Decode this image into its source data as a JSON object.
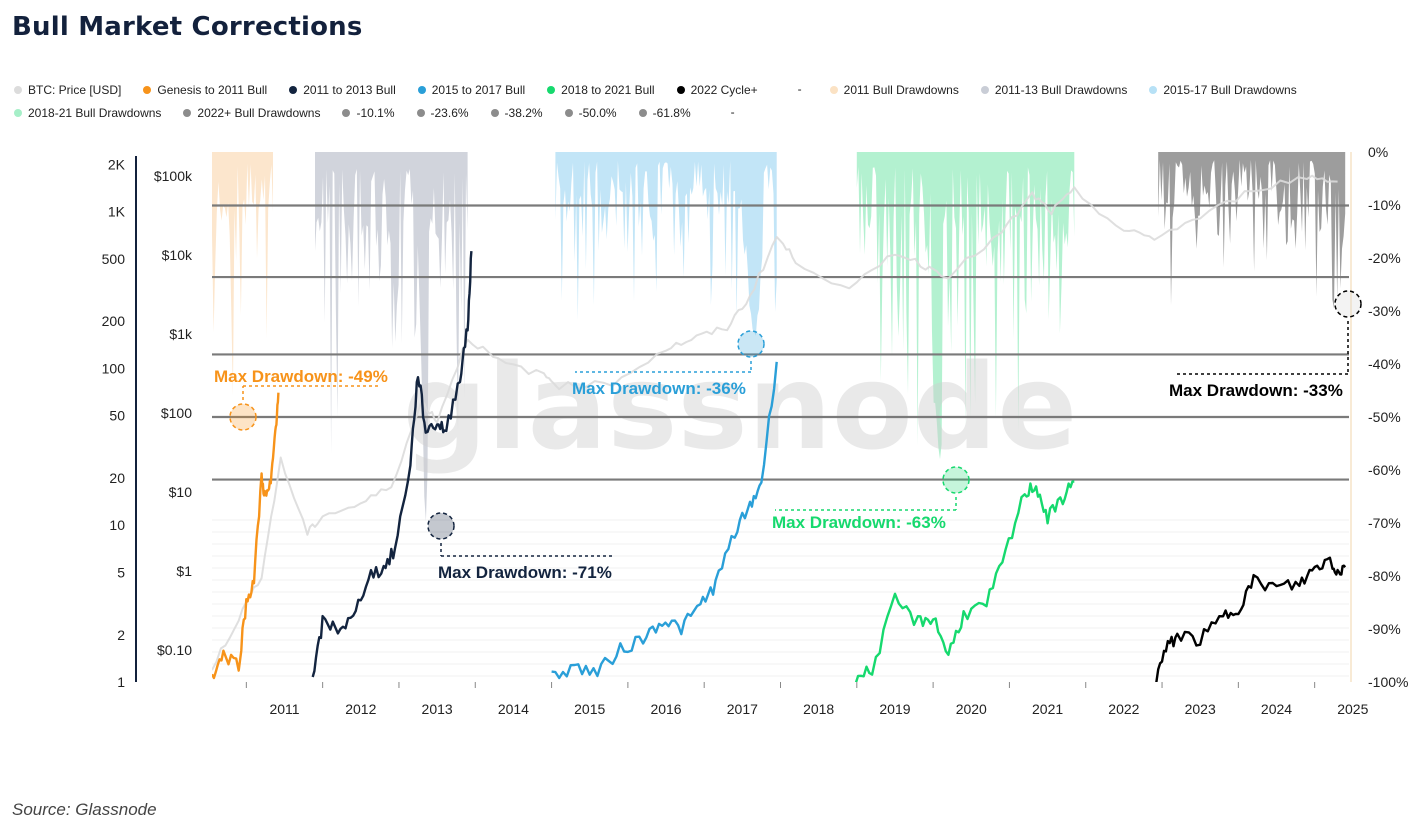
{
  "title": "Bull Market Corrections",
  "source": "Source: Glassnode",
  "watermark": "glassnode",
  "legend": [
    {
      "label": "BTC: Price [USD]",
      "color": "#dcdcdc"
    },
    {
      "label": "Genesis to 2011 Bull",
      "color": "#f7931a"
    },
    {
      "label": "2011 to 2013 Bull",
      "color": "#13243f"
    },
    {
      "label": "2015 to 2017 Bull",
      "color": "#2a9fd8"
    },
    {
      "label": "2018 to 2021 Bull",
      "color": "#16d96e"
    },
    {
      "label": "2022 Cycle+",
      "color": "#000000"
    },
    {
      "label": "-",
      "color": "",
      "dash": true
    },
    {
      "label": "2011 Bull Drawdowns",
      "color": "#fbe2c4"
    },
    {
      "label": "2011-13 Bull Drawdowns",
      "color": "#c9cdd6"
    },
    {
      "label": "2015-17 Bull Drawdowns",
      "color": "#b7e1f6"
    },
    {
      "label": "2018-21 Bull Drawdowns",
      "color": "#a6efc8"
    },
    {
      "label": "2022+ Bull Drawdowns",
      "color": "#8c8c8c"
    },
    {
      "label": "-10.1%",
      "color": "#8c8c8c"
    },
    {
      "label": "-23.6%",
      "color": "#8c8c8c"
    },
    {
      "label": "-38.2%",
      "color": "#8c8c8c"
    },
    {
      "label": "-50.0%",
      "color": "#8c8c8c"
    },
    {
      "label": "-61.8%",
      "color": "#8c8c8c"
    },
    {
      "label": "-",
      "color": "",
      "dash": true
    }
  ],
  "chart_data": {
    "type": "line",
    "x_ticks": [
      "2011",
      "2012",
      "2013",
      "2014",
      "2015",
      "2016",
      "2017",
      "2018",
      "2019",
      "2020",
      "2021",
      "2022",
      "2023",
      "2024",
      "2025"
    ],
    "y_left_outer": {
      "scale": "log",
      "ticks": [
        "2K",
        "1K",
        "500",
        "200",
        "100",
        "50",
        "20",
        "10",
        "5",
        "2",
        "1"
      ]
    },
    "y_left_inner": {
      "scale": "log",
      "ticks": [
        "$100k",
        "$10k",
        "$1k",
        "$100",
        "$10",
        "$1",
        "$0.10"
      ]
    },
    "y_right": {
      "scale": "linear",
      "ticks": [
        "0%",
        "-10%",
        "-20%",
        "-30%",
        "-40%",
        "-50%",
        "-60%",
        "-70%",
        "-80%",
        "-90%",
        "-100%"
      ],
      "ylim": [
        -100,
        0
      ]
    },
    "fib_levels": [
      -10.1,
      -23.6,
      -38.2,
      -50.0,
      -61.8
    ],
    "series": [
      {
        "name": "BTC: Price [USD]",
        "color": "#dcdcdc",
        "points": [
          [
            2010.55,
            0.06
          ],
          [
            2010.9,
            0.25
          ],
          [
            2011.2,
            0.9
          ],
          [
            2011.45,
            25
          ],
          [
            2011.8,
            3
          ],
          [
            2012.0,
            5
          ],
          [
            2012.5,
            7
          ],
          [
            2012.9,
            12
          ],
          [
            2013.3,
            140
          ],
          [
            2013.5,
            80
          ],
          [
            2013.9,
            900
          ],
          [
            2014.3,
            450
          ],
          [
            2014.9,
            300
          ],
          [
            2015.1,
            220
          ],
          [
            2015.8,
            240
          ],
          [
            2016.5,
            650
          ],
          [
            2016.9,
            900
          ],
          [
            2017.3,
            1200
          ],
          [
            2017.6,
            3000
          ],
          [
            2017.95,
            17000
          ],
          [
            2018.2,
            8500
          ],
          [
            2018.9,
            3500
          ],
          [
            2019.5,
            11000
          ],
          [
            2019.9,
            7200
          ],
          [
            2020.2,
            5500
          ],
          [
            2020.9,
            19000
          ],
          [
            2021.3,
            58000
          ],
          [
            2021.55,
            35000
          ],
          [
            2021.85,
            65000
          ],
          [
            2022.5,
            20000
          ],
          [
            2022.9,
            16500
          ],
          [
            2023.5,
            30000
          ],
          [
            2024.2,
            68000
          ],
          [
            2024.9,
            98000
          ],
          [
            2025.3,
            85000
          ]
        ]
      },
      {
        "name": "Genesis to 2011 Bull",
        "color": "#f7931a",
        "points": [
          [
            2010.55,
            1.1
          ],
          [
            2010.7,
            1.5
          ],
          [
            2010.9,
            1.3
          ],
          [
            2011.0,
            3.2
          ],
          [
            2011.1,
            4.5
          ],
          [
            2011.2,
            20
          ],
          [
            2011.25,
            15
          ],
          [
            2011.32,
            18
          ],
          [
            2011.38,
            40
          ],
          [
            2011.42,
            70
          ]
        ]
      },
      {
        "name": "2011 to 2013 Bull",
        "color": "#13243f",
        "points": [
          [
            2011.87,
            1
          ],
          [
            2012.0,
            2.4
          ],
          [
            2012.2,
            2.2
          ],
          [
            2012.4,
            2.5
          ],
          [
            2012.6,
            4.8
          ],
          [
            2012.8,
            5.3
          ],
          [
            2012.95,
            7
          ],
          [
            2013.15,
            25
          ],
          [
            2013.25,
            95
          ],
          [
            2013.35,
            40
          ],
          [
            2013.5,
            45
          ],
          [
            2013.62,
            40
          ],
          [
            2013.8,
            90
          ],
          [
            2013.9,
            180
          ],
          [
            2013.95,
            560
          ]
        ]
      },
      {
        "name": "2015 to 2017 Bull",
        "color": "#2a9fd8",
        "points": [
          [
            2015.0,
            1.1
          ],
          [
            2015.3,
            1.25
          ],
          [
            2015.6,
            1.15
          ],
          [
            2015.9,
            1.6
          ],
          [
            2016.2,
            1.9
          ],
          [
            2016.45,
            2.5
          ],
          [
            2016.7,
            2.2
          ],
          [
            2016.95,
            3.1
          ],
          [
            2017.15,
            4.2
          ],
          [
            2017.4,
            9
          ],
          [
            2017.6,
            13
          ],
          [
            2017.75,
            19
          ],
          [
            2017.95,
            110
          ]
        ]
      },
      {
        "name": "2018 to 2021 Bull",
        "color": "#16d96e",
        "points": [
          [
            2018.98,
            1.05
          ],
          [
            2019.2,
            1.2
          ],
          [
            2019.5,
            3.3
          ],
          [
            2019.8,
            2.4
          ],
          [
            2020.0,
            2.6
          ],
          [
            2020.2,
            1.5
          ],
          [
            2020.4,
            2.7
          ],
          [
            2020.7,
            3.1
          ],
          [
            2020.95,
            6.5
          ],
          [
            2021.2,
            16
          ],
          [
            2021.35,
            18
          ],
          [
            2021.5,
            11
          ],
          [
            2021.7,
            15
          ],
          [
            2021.85,
            19
          ]
        ]
      },
      {
        "name": "2022 Cycle+",
        "color": "#000000",
        "points": [
          [
            2022.9,
            1.0
          ],
          [
            2023.05,
            1.6
          ],
          [
            2023.2,
            2.0
          ],
          [
            2023.5,
            1.85
          ],
          [
            2023.8,
            2.6
          ],
          [
            2024.0,
            3.0
          ],
          [
            2024.2,
            4.4
          ],
          [
            2024.5,
            4.0
          ],
          [
            2024.8,
            4.2
          ],
          [
            2025.0,
            5.3
          ],
          [
            2025.2,
            6.1
          ],
          [
            2025.3,
            5.0
          ],
          [
            2025.4,
            5.4
          ]
        ]
      }
    ],
    "drawdown_series": [
      {
        "name": "2011 Bull Drawdowns",
        "color": "#fbe2c4",
        "x_range": [
          2010.55,
          2011.35
        ],
        "max": -49
      },
      {
        "name": "2011-13 Bull Drawdowns",
        "color": "#c9cdd6",
        "x_range": [
          2011.9,
          2013.9
        ],
        "max": -71
      },
      {
        "name": "2015-17 Bull Drawdowns",
        "color": "#b7e1f6",
        "x_range": [
          2015.05,
          2017.95
        ],
        "max": -36
      },
      {
        "name": "2018-21 Bull Drawdowns",
        "color": "#a6efc8",
        "x_range": [
          2019.0,
          2021.85
        ],
        "max": -63
      },
      {
        "name": "2022+ Bull Drawdowns",
        "color": "#8c8c8c",
        "x_range": [
          2022.95,
          2025.4
        ],
        "max": -33
      }
    ],
    "annotations": [
      {
        "text": "Max Drawdown: -49%",
        "color": "#f7931a",
        "x": 2010.9,
        "value": -49
      },
      {
        "text": "Max Drawdown: -71%",
        "color": "#13243f",
        "x": 2013.52,
        "value": -71
      },
      {
        "text": "Max Drawdown: -36%",
        "color": "#2a9fd8",
        "x": 2017.55,
        "value": -36
      },
      {
        "text": "Max Drawdown: -63%",
        "color": "#16d96e",
        "x": 2020.2,
        "value": -63
      },
      {
        "text": "Max Drawdown: -33%",
        "color": "#000000",
        "x": 2025.3,
        "value": -33
      }
    ]
  }
}
